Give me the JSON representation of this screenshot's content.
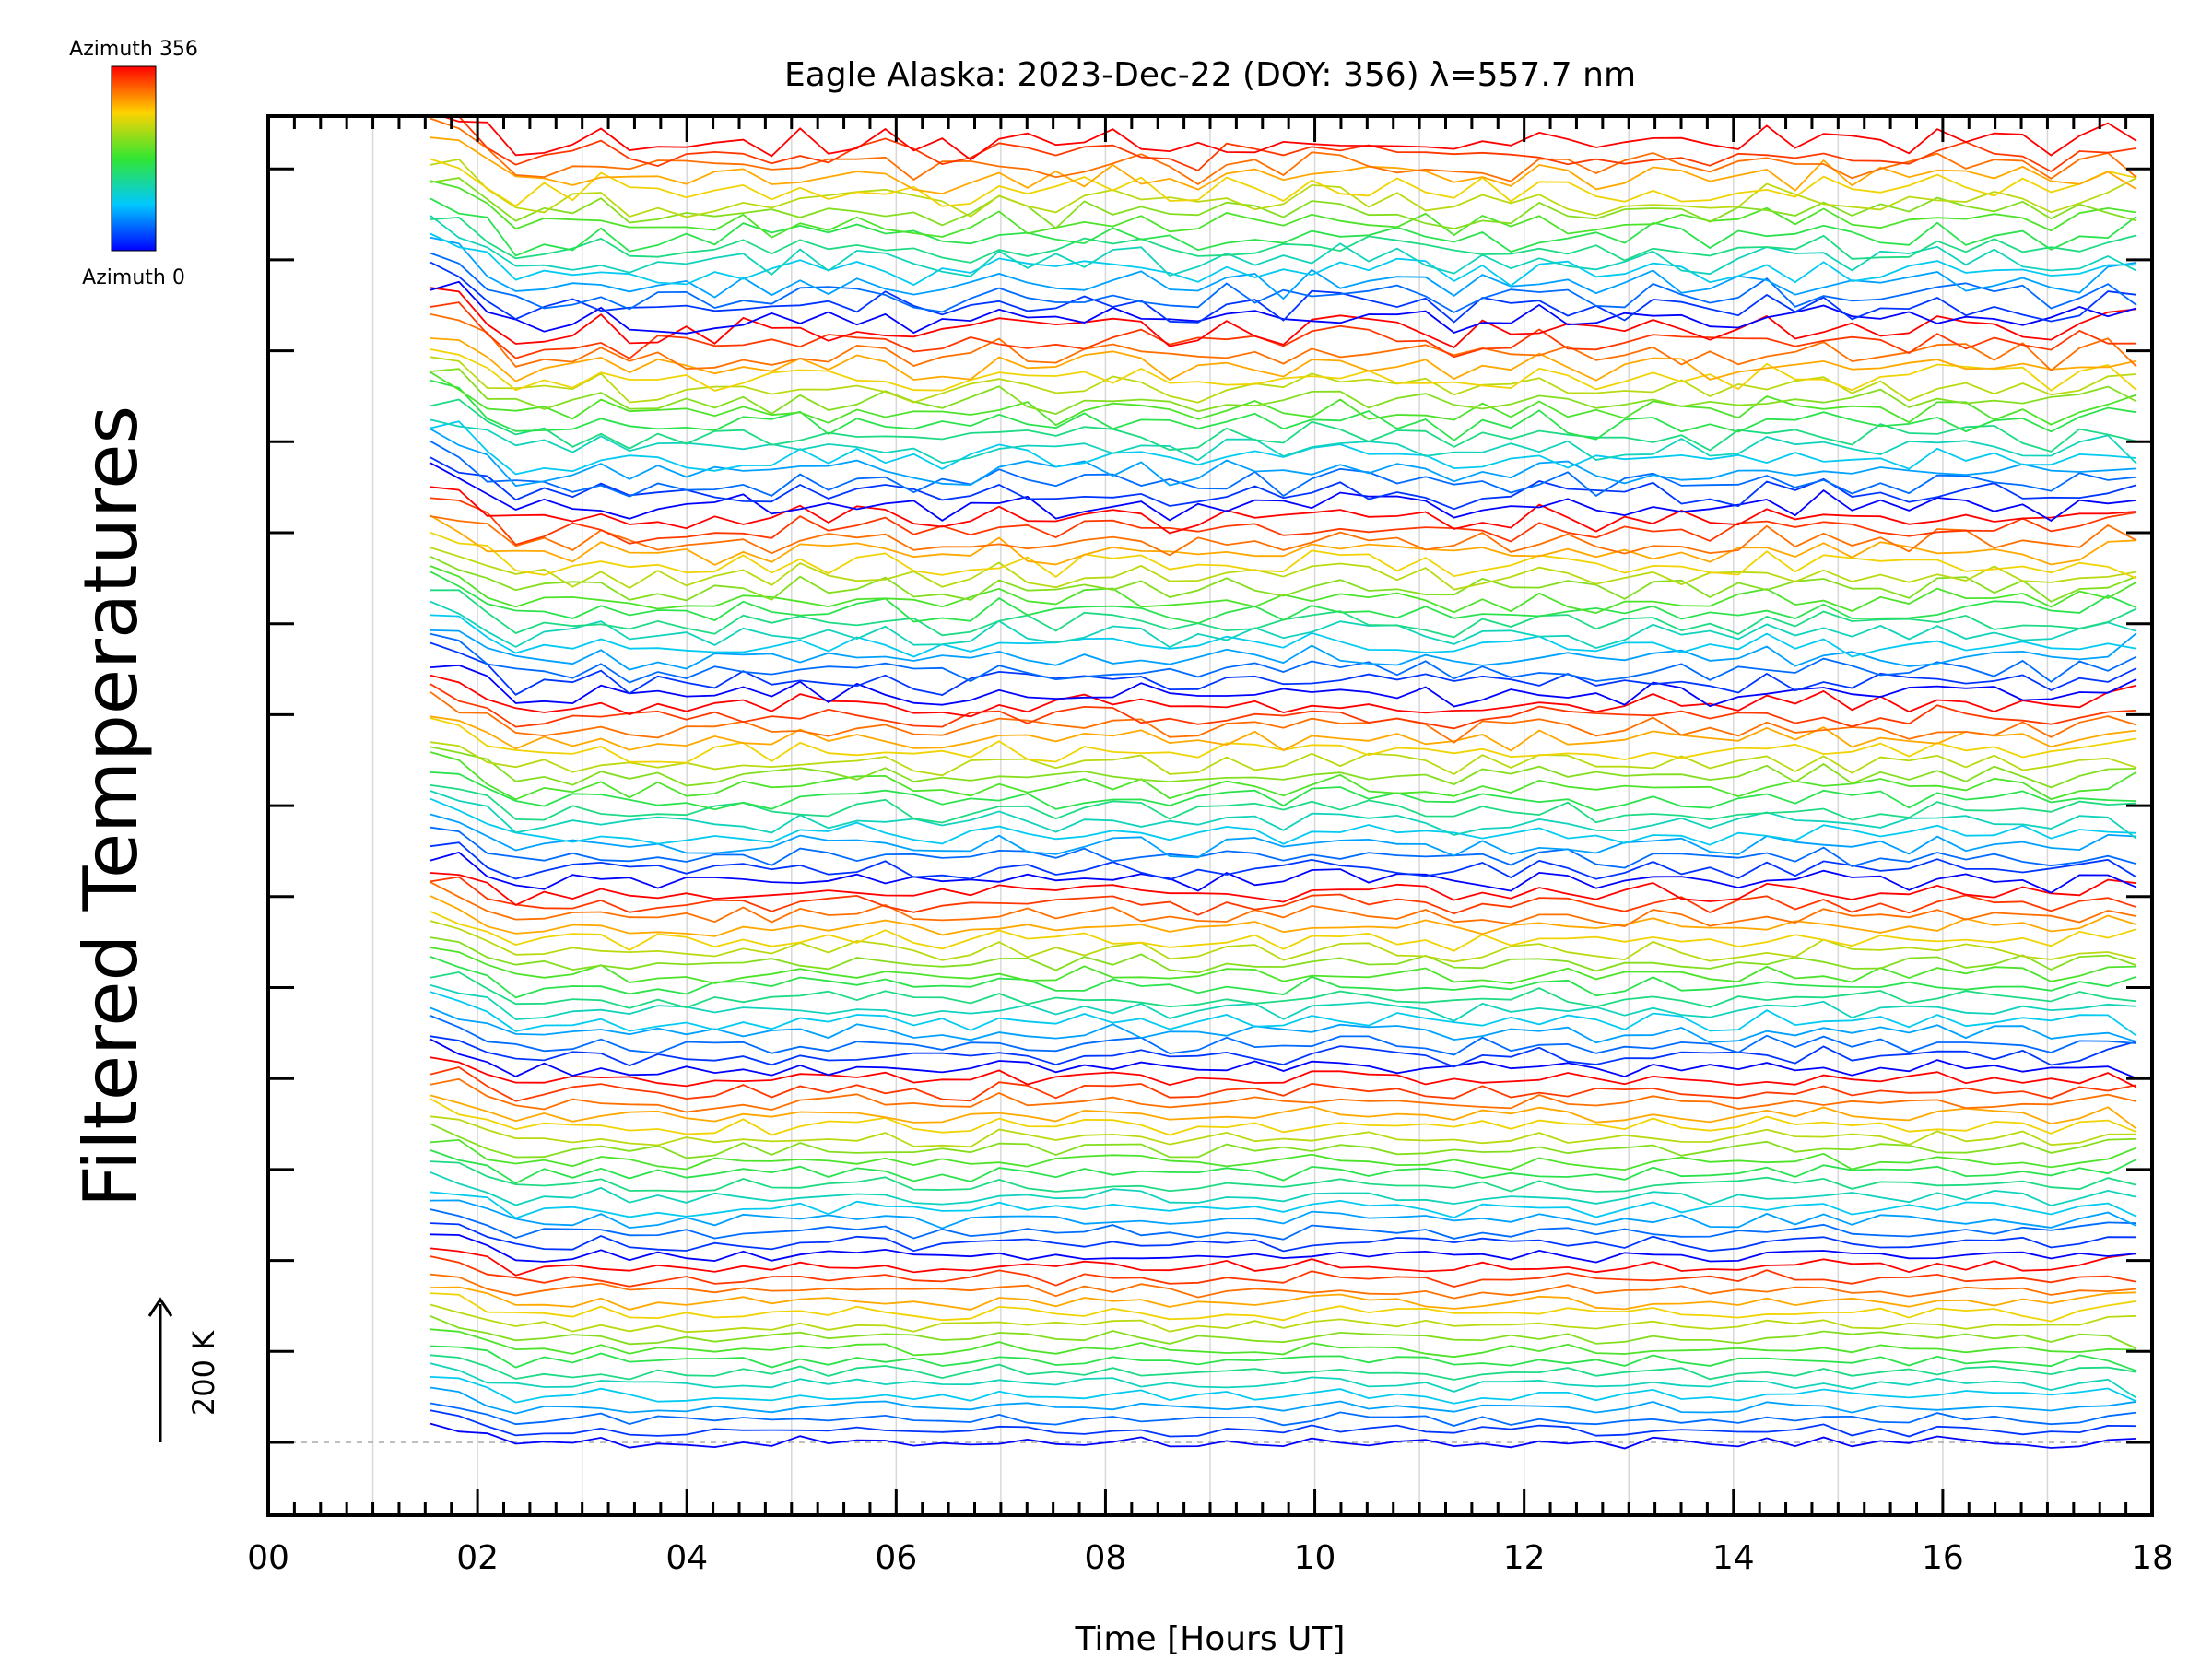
{
  "chart_data": {
    "type": "line",
    "title": "Eagle Alaska: 2023-Dec-22 (DOY: 356) λ=557.7 nm",
    "xlabel": "Time [Hours UT]",
    "ylabel": "Filtered Temperatures",
    "xlim": [
      0,
      18
    ],
    "x_ticks": [
      "00",
      "02",
      "04",
      "06",
      "08",
      "10",
      "12",
      "14",
      "16",
      "18"
    ],
    "data_start_hour": 1.55,
    "data_end_hour": 17.85,
    "scale_bar_label": "200 K",
    "colorbar": {
      "top_label": "Azimuth 356",
      "bottom_label": "Azimuth 0",
      "colormap": "rainbow (blue → cyan → green → yellow → red)"
    },
    "series_count": 112,
    "series_description": "Stacked, vertically offset filtered temperature time series, one per azimuth (0–356), colored by azimuth"
  }
}
